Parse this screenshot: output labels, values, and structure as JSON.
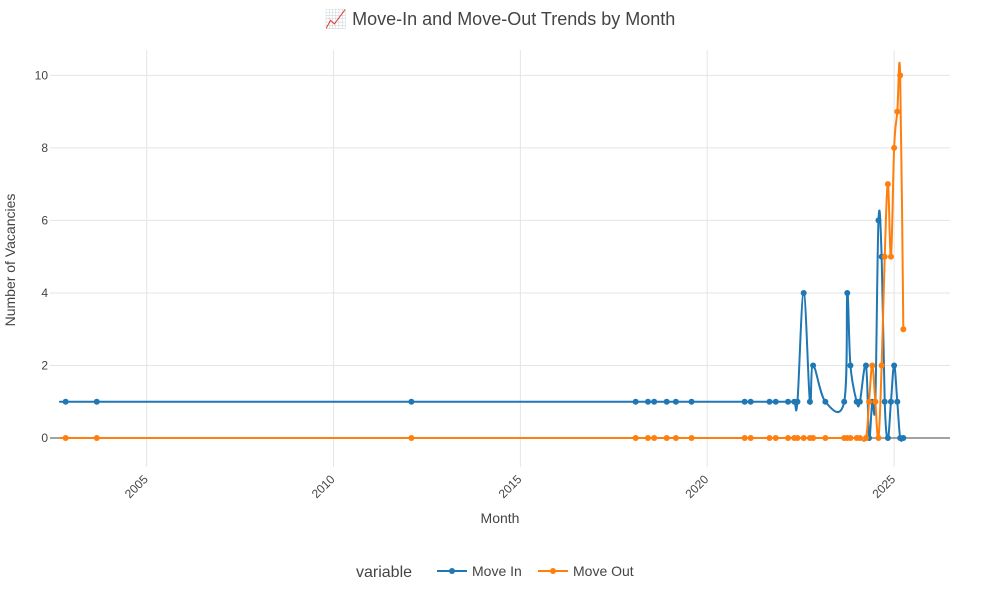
{
  "chart_data": {
    "type": "line",
    "title": "📈 Move-In and Move-Out Trends by Month",
    "xlabel": "Month",
    "ylabel": "Number of Vacancies",
    "x_axis": {
      "kind": "date",
      "range": [
        "2002-06-01",
        "2026-07-01"
      ],
      "ticks": [
        "2005",
        "2010",
        "2015",
        "2020",
        "2025"
      ]
    },
    "y_axis": {
      "range": [
        -0.8,
        10.7
      ],
      "ticks": [
        0,
        2,
        4,
        6,
        8,
        10
      ]
    },
    "grid": true,
    "legend": {
      "title": "variable",
      "placement": "bottom-center",
      "orientation": "horizontal"
    },
    "series": [
      {
        "name": "Move In",
        "color": "#1f77b4",
        "points": [
          [
            "2002-11-01",
            1
          ],
          [
            "2003-09-01",
            1
          ],
          [
            "2012-02-01",
            1
          ],
          [
            "2018-02-01",
            1
          ],
          [
            "2018-06-01",
            1
          ],
          [
            "2018-08-01",
            1
          ],
          [
            "2018-12-01",
            1
          ],
          [
            "2019-03-01",
            1
          ],
          [
            "2019-08-01",
            1
          ],
          [
            "2021-01-01",
            1
          ],
          [
            "2021-03-01",
            1
          ],
          [
            "2021-09-01",
            1
          ],
          [
            "2021-11-01",
            1
          ],
          [
            "2022-03-01",
            1
          ],
          [
            "2022-05-01",
            1
          ],
          [
            "2022-06-01",
            1
          ],
          [
            "2022-08-01",
            4
          ],
          [
            "2022-10-01",
            1
          ],
          [
            "2022-11-01",
            2
          ],
          [
            "2023-03-01",
            1
          ],
          [
            "2023-09-01",
            1
          ],
          [
            "2023-10-01",
            4
          ],
          [
            "2023-11-01",
            2
          ],
          [
            "2024-01-01",
            1
          ],
          [
            "2024-02-01",
            1
          ],
          [
            "2024-04-01",
            2
          ],
          [
            "2024-05-01",
            0
          ],
          [
            "2024-06-01",
            1
          ],
          [
            "2024-07-01",
            1
          ],
          [
            "2024-08-01",
            6
          ],
          [
            "2024-09-01",
            5
          ],
          [
            "2024-10-01",
            1
          ],
          [
            "2024-11-01",
            0
          ],
          [
            "2024-12-01",
            1
          ],
          [
            "2025-01-01",
            2
          ],
          [
            "2025-02-01",
            1
          ],
          [
            "2025-03-01",
            0
          ],
          [
            "2025-04-01",
            0
          ]
        ]
      },
      {
        "name": "Move Out",
        "color": "#ff7f0e",
        "points": [
          [
            "2002-11-01",
            0
          ],
          [
            "2003-09-01",
            0
          ],
          [
            "2012-02-01",
            0
          ],
          [
            "2018-02-01",
            0
          ],
          [
            "2018-06-01",
            0
          ],
          [
            "2018-08-01",
            0
          ],
          [
            "2018-12-01",
            0
          ],
          [
            "2019-03-01",
            0
          ],
          [
            "2019-08-01",
            0
          ],
          [
            "2021-01-01",
            0
          ],
          [
            "2021-03-01",
            0
          ],
          [
            "2021-09-01",
            0
          ],
          [
            "2021-11-01",
            0
          ],
          [
            "2022-03-01",
            0
          ],
          [
            "2022-05-01",
            0
          ],
          [
            "2022-06-01",
            0
          ],
          [
            "2022-08-01",
            0
          ],
          [
            "2022-10-01",
            0
          ],
          [
            "2022-11-01",
            0
          ],
          [
            "2023-03-01",
            0
          ],
          [
            "2023-09-01",
            0
          ],
          [
            "2023-10-01",
            0
          ],
          [
            "2023-11-01",
            0
          ],
          [
            "2024-01-01",
            0
          ],
          [
            "2024-02-01",
            0
          ],
          [
            "2024-04-01",
            0
          ],
          [
            "2024-05-01",
            1
          ],
          [
            "2024-06-01",
            2
          ],
          [
            "2024-07-01",
            1
          ],
          [
            "2024-08-01",
            0
          ],
          [
            "2024-09-01",
            2
          ],
          [
            "2024-10-01",
            5
          ],
          [
            "2024-11-01",
            7
          ],
          [
            "2024-12-01",
            5
          ],
          [
            "2025-01-01",
            8
          ],
          [
            "2025-02-01",
            9
          ],
          [
            "2025-03-01",
            10
          ],
          [
            "2025-04-01",
            3
          ]
        ]
      }
    ]
  }
}
